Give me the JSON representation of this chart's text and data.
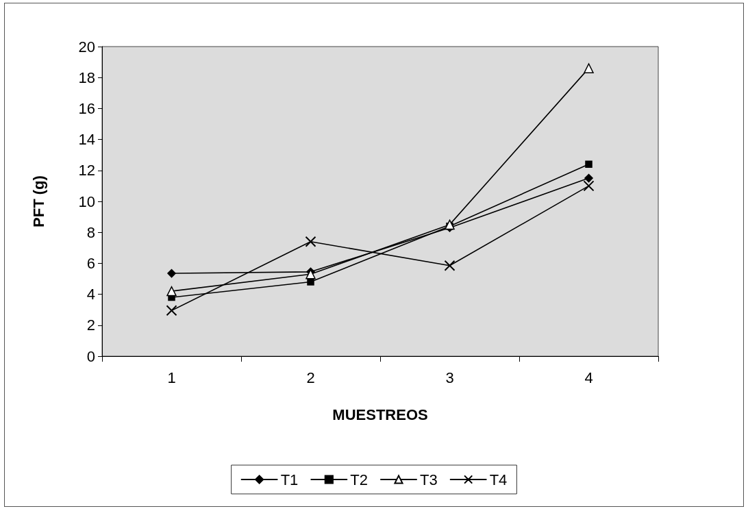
{
  "chart_data": {
    "type": "line",
    "xlabel": "MUESTREOS",
    "ylabel": "PFT (g)",
    "categories": [
      "1",
      "2",
      "3",
      "4"
    ],
    "series": [
      {
        "name": "T1",
        "color": "#000000",
        "marker": "diamond",
        "values": [
          5.35,
          5.45,
          8.3,
          11.5
        ]
      },
      {
        "name": "T2",
        "color": "#000000",
        "marker": "square",
        "values": [
          3.8,
          4.8,
          8.4,
          12.4
        ]
      },
      {
        "name": "T3",
        "color": "#000000",
        "marker": "triangle",
        "values": [
          4.2,
          5.3,
          8.5,
          18.6
        ]
      },
      {
        "name": "T4",
        "color": "#000000",
        "marker": "cross",
        "values": [
          2.95,
          7.4,
          5.85,
          11.0
        ]
      }
    ],
    "ylim": [
      0,
      20
    ],
    "yticks": [
      0,
      2,
      4,
      6,
      8,
      10,
      12,
      14,
      16,
      18,
      20
    ],
    "grid": false,
    "legend": "bottom",
    "line_style": "solid"
  }
}
